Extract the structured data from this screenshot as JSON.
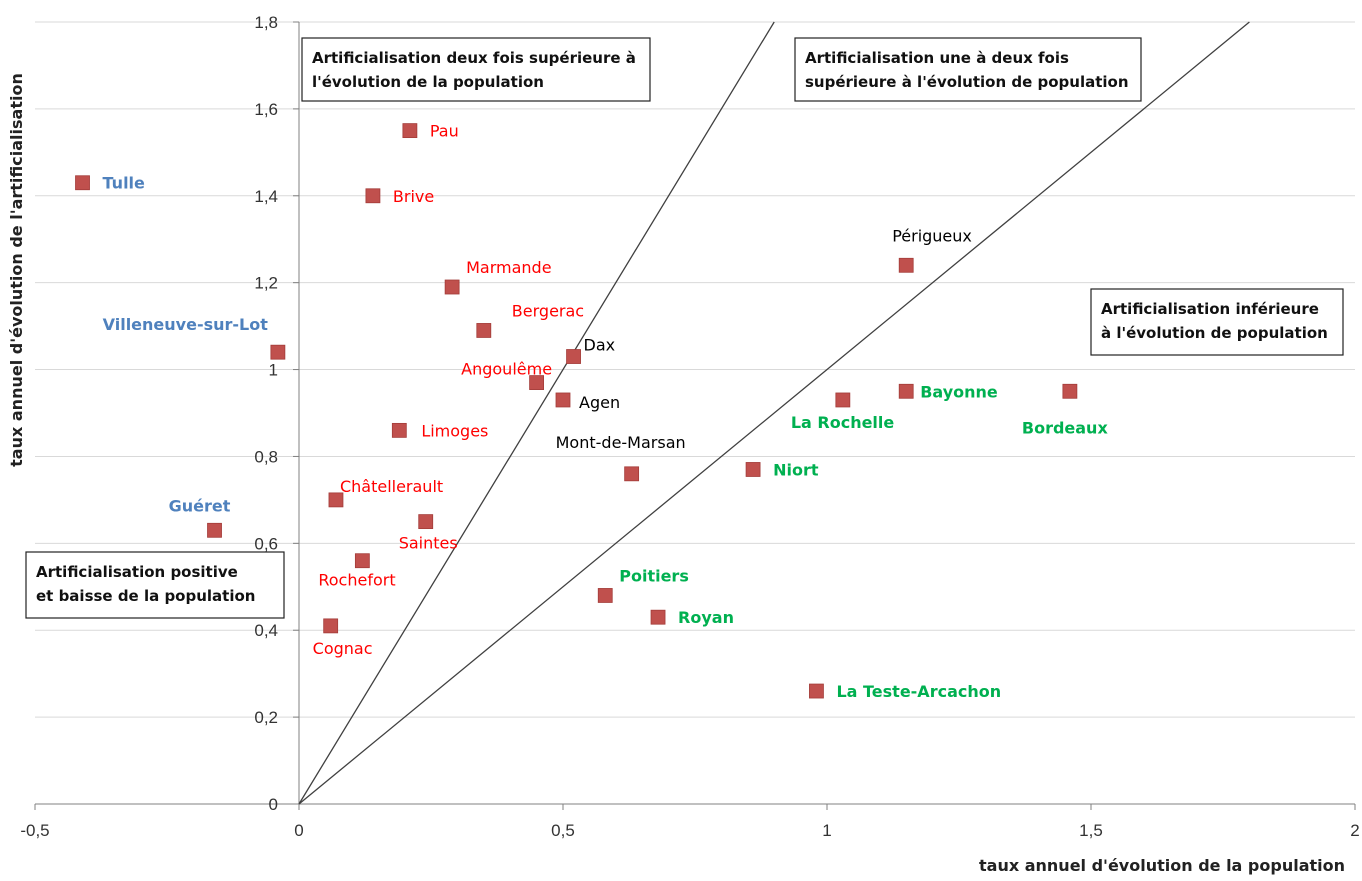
{
  "chart_data": {
    "type": "scatter",
    "title": "",
    "xlabel": "taux annuel d'évolution de la population",
    "ylabel": "taux annuel d'évolution de l'artificialisation",
    "xlim": [
      -0.5,
      2
    ],
    "ylim": [
      0,
      1.8
    ],
    "x_ticks": [
      "-0,5",
      "0",
      "0,5",
      "1",
      "1,5",
      "2"
    ],
    "y_ticks": [
      "0",
      "0,2",
      "0,4",
      "0,6",
      "0,8",
      "1",
      "1,2",
      "1,4",
      "1,6",
      "1,8"
    ],
    "grid": "horizontal",
    "marker_color": "#c0504d",
    "label_colors": {
      "red": "#ff0000",
      "blue": "#4f81bd",
      "green": "#00b050",
      "black": "#000000"
    },
    "reference_lines": [
      {
        "slope": 2,
        "x": [
          0,
          0.9
        ],
        "y": [
          0,
          1.8
        ]
      },
      {
        "slope": 1,
        "x": [
          0,
          1.8
        ],
        "y": [
          0,
          1.8
        ]
      }
    ],
    "points": [
      {
        "name": "Tulle",
        "x": -0.41,
        "y": 1.43,
        "color": "blue",
        "bold": true
      },
      {
        "name": "Villeneuve-sur-Lot",
        "x": -0.04,
        "y": 1.04,
        "color": "blue",
        "bold": true
      },
      {
        "name": "Guéret",
        "x": -0.16,
        "y": 0.63,
        "color": "blue",
        "bold": true
      },
      {
        "name": "Pau",
        "x": 0.21,
        "y": 1.55,
        "color": "red",
        "bold": false
      },
      {
        "name": "Brive",
        "x": 0.14,
        "y": 1.4,
        "color": "red",
        "bold": false
      },
      {
        "name": "Marmande",
        "x": 0.29,
        "y": 1.19,
        "color": "red",
        "bold": false
      },
      {
        "name": "Bergerac",
        "x": 0.35,
        "y": 1.09,
        "color": "red",
        "bold": false
      },
      {
        "name": "Angoulême",
        "x": 0.45,
        "y": 0.97,
        "color": "red",
        "bold": false
      },
      {
        "name": "Limoges",
        "x": 0.19,
        "y": 0.86,
        "color": "red",
        "bold": false
      },
      {
        "name": "Châtellerault",
        "x": 0.07,
        "y": 0.7,
        "color": "red",
        "bold": false
      },
      {
        "name": "Saintes",
        "x": 0.24,
        "y": 0.65,
        "color": "red",
        "bold": false
      },
      {
        "name": "Rochefort",
        "x": 0.12,
        "y": 0.56,
        "color": "red",
        "bold": false
      },
      {
        "name": "Cognac",
        "x": 0.06,
        "y": 0.41,
        "color": "red",
        "bold": false
      },
      {
        "name": "Dax",
        "x": 0.52,
        "y": 1.03,
        "color": "black",
        "bold": false
      },
      {
        "name": "Agen",
        "x": 0.5,
        "y": 0.93,
        "color": "black",
        "bold": false
      },
      {
        "name": "Mont-de-Marsan",
        "x": 0.63,
        "y": 0.76,
        "color": "black",
        "bold": false
      },
      {
        "name": "Périgueux",
        "x": 1.15,
        "y": 1.24,
        "color": "black",
        "bold": false
      },
      {
        "name": "La Rochelle",
        "x": 1.03,
        "y": 0.93,
        "color": "green",
        "bold": true
      },
      {
        "name": "Bayonne",
        "x": 1.15,
        "y": 0.95,
        "color": "green",
        "bold": true
      },
      {
        "name": "Bordeaux",
        "x": 1.46,
        "y": 0.95,
        "color": "green",
        "bold": true
      },
      {
        "name": "Niort",
        "x": 0.86,
        "y": 0.77,
        "color": "green",
        "bold": true
      },
      {
        "name": "Poitiers",
        "x": 0.58,
        "y": 0.48,
        "color": "green",
        "bold": true
      },
      {
        "name": "Royan",
        "x": 0.68,
        "y": 0.43,
        "color": "green",
        "bold": true
      },
      {
        "name": "La Teste-Arcachon",
        "x": 0.98,
        "y": 0.26,
        "color": "green",
        "bold": true
      }
    ],
    "annotations": [
      {
        "id": "zone-2x",
        "lines": [
          "Artificialisation deux fois supérieure à",
          "l'évolution de la population"
        ]
      },
      {
        "id": "zone-1-2x",
        "lines": [
          "Artificialisation une à deux fois",
          "supérieure à l'évolution de population"
        ]
      },
      {
        "id": "zone-lt",
        "lines": [
          "Artificialisation inférieure",
          "à l'évolution de population"
        ]
      },
      {
        "id": "zone-neg",
        "lines": [
          "Artificialisation positive",
          "et baisse de la population"
        ]
      }
    ]
  }
}
